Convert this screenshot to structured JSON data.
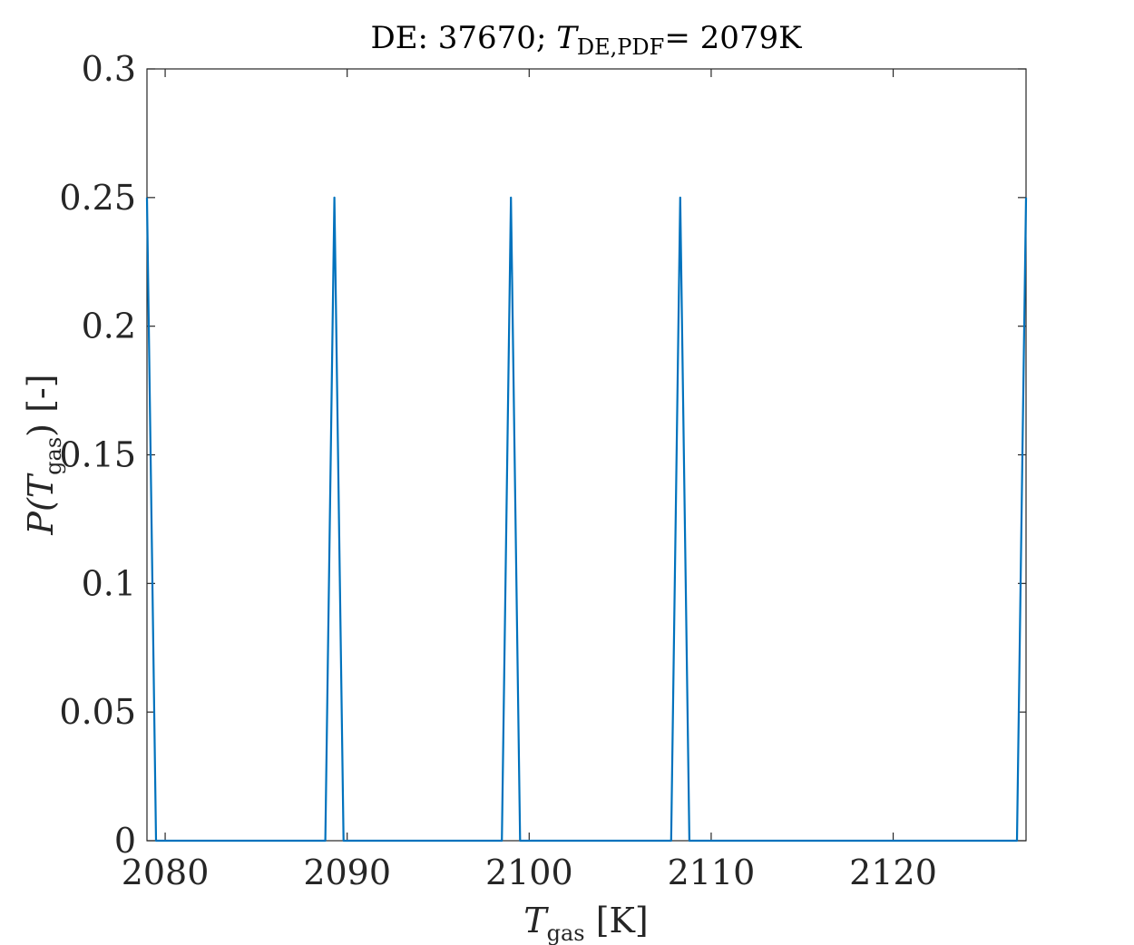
{
  "chart_data": {
    "type": "line",
    "title": {
      "prefix": "DE: 37670; ",
      "var": "T",
      "sub": "DE,PDF",
      "suffix": "= 2079K"
    },
    "xlabel": {
      "var": "T",
      "sub": "gas",
      "unit": " [K]"
    },
    "ylabel": {
      "pre": "P(",
      "var": "T",
      "sub": "gas",
      "post": ") [-]"
    },
    "xlim": [
      2079,
      2127.3
    ],
    "ylim": [
      0,
      0.3
    ],
    "xticks": [
      2080,
      2090,
      2100,
      2110,
      2120
    ],
    "xtick_labels": [
      "2080",
      "2090",
      "2100",
      "2110",
      "2120"
    ],
    "yticks": [
      0,
      0.05,
      0.1,
      0.15,
      0.2,
      0.25,
      0.3
    ],
    "ytick_labels": [
      "0",
      "0.05",
      "0.1",
      "0.15",
      "0.2",
      "0.25",
      "0.3"
    ],
    "grid": false,
    "line_color": "#0072BD",
    "series": [
      {
        "x": [
          2079.0,
          2079.5,
          2088.8,
          2089.3,
          2089.8,
          2098.5,
          2099.0,
          2099.5,
          2107.8,
          2108.3,
          2108.8,
          2126.8,
          2127.3
        ],
        "y": [
          0.25,
          0,
          0,
          0.25,
          0,
          0,
          0.25,
          0,
          0,
          0.25,
          0,
          0,
          0.25
        ]
      }
    ]
  }
}
